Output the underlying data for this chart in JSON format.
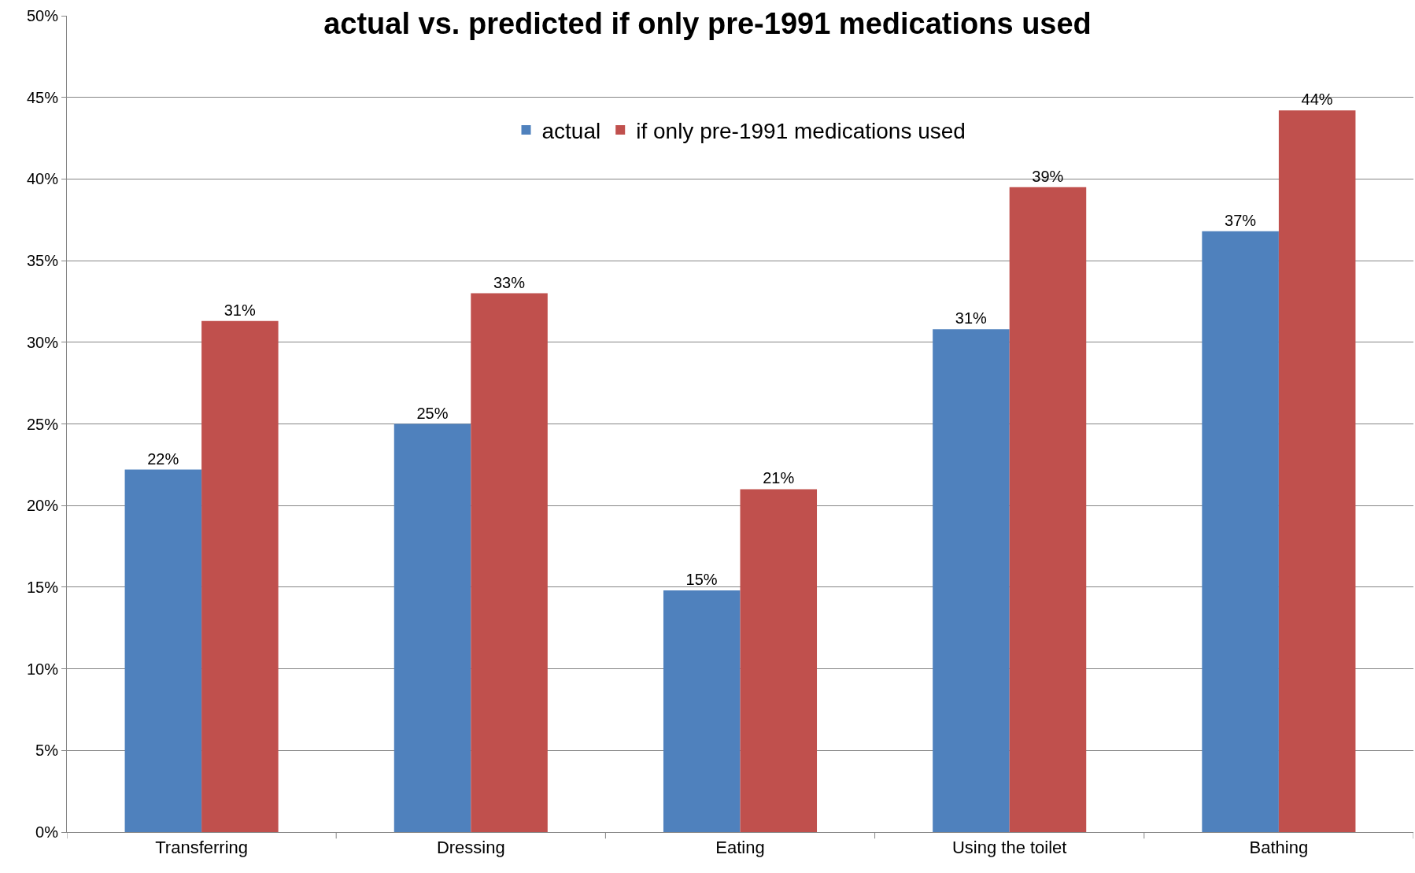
{
  "chart_data": {
    "type": "bar",
    "title": "actual vs. predicted if only pre-1991 medications used",
    "categories": [
      "Transferring",
      "Dressing",
      "Eating",
      "Using the toilet",
      "Bathing"
    ],
    "series": [
      {
        "name": "actual",
        "color": "#4f81bd",
        "values": [
          22.2,
          25.0,
          14.8,
          30.8,
          36.8
        ],
        "value_labels": [
          "22%",
          "25%",
          "15%",
          "31%",
          "37%"
        ]
      },
      {
        "name": "if only pre-1991 medications used",
        "color": "#c0504d",
        "values": [
          31.3,
          33.0,
          21.0,
          39.5,
          44.2
        ],
        "value_labels": [
          "31%",
          "33%",
          "21%",
          "39%",
          "44%"
        ]
      }
    ],
    "ylim": [
      0,
      50
    ],
    "yticks": [
      {
        "value": 0,
        "label": "0%"
      },
      {
        "value": 5,
        "label": "5%"
      },
      {
        "value": 10,
        "label": "10%"
      },
      {
        "value": 15,
        "label": "15%"
      },
      {
        "value": 20,
        "label": "20%"
      },
      {
        "value": 25,
        "label": "25%"
      },
      {
        "value": 30,
        "label": "30%"
      },
      {
        "value": 35,
        "label": "35%"
      },
      {
        "value": 40,
        "label": "40%"
      },
      {
        "value": 45,
        "label": "45%"
      },
      {
        "value": 50,
        "label": "50%"
      }
    ],
    "grid": "y",
    "legend": "top"
  }
}
